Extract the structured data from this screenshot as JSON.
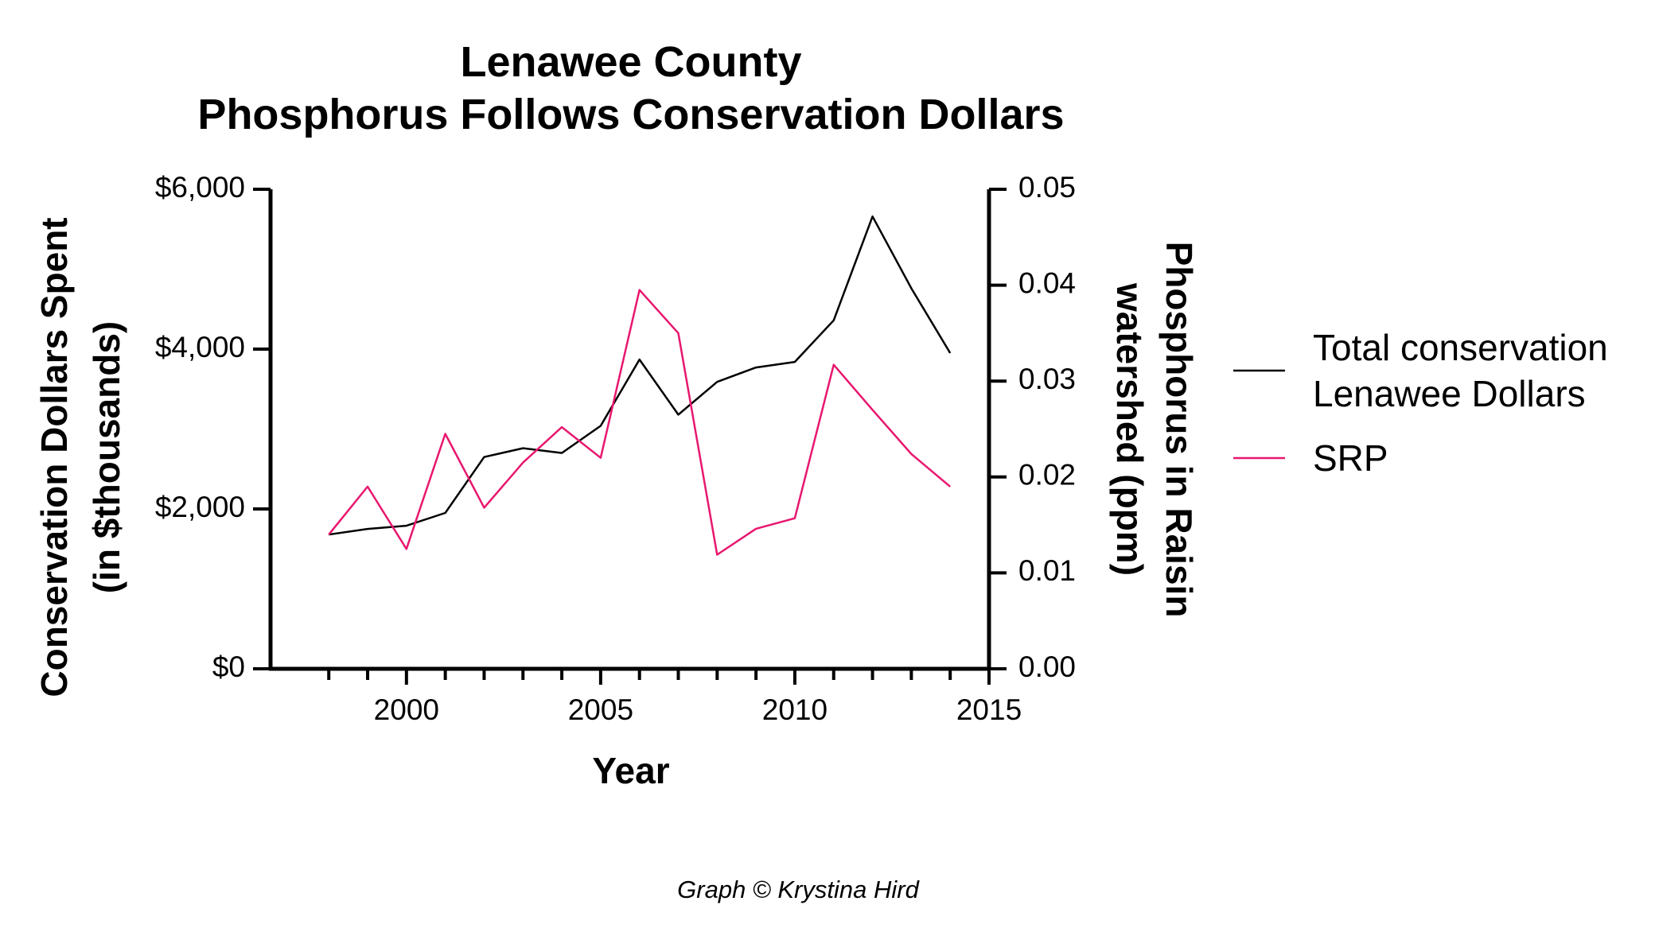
{
  "chart_data": {
    "type": "line",
    "title": [
      "Lenawee County",
      "Phosphorus Follows Conservation Dollars"
    ],
    "xlabel": "Year",
    "ylabel_left": [
      "Conservation Dollars Spent",
      "(in $thousands)"
    ],
    "ylabel_right": [
      "Phosphorus in Raisin",
      "watershed (ppm)"
    ],
    "xlim": [
      1996.5,
      2015
    ],
    "ylim_left": [
      0,
      6000
    ],
    "ylim_right": [
      0,
      0.05
    ],
    "x_ticks": [
      2000,
      2005,
      2010,
      2015
    ],
    "x_tick_labels": [
      "2000",
      "2005",
      "2010",
      "2015"
    ],
    "x_minor_ticks": [
      1998,
      1999,
      2001,
      2002,
      2003,
      2004,
      2006,
      2007,
      2008,
      2009,
      2011,
      2012,
      2013,
      2014
    ],
    "y_left_ticks": [
      0,
      2000,
      4000,
      6000
    ],
    "y_left_tick_labels": [
      "$0",
      "$2,000",
      "$4,000",
      "$6,000"
    ],
    "y_right_ticks": [
      0,
      0.01,
      0.02,
      0.03,
      0.04,
      0.05
    ],
    "y_right_tick_labels": [
      "0.00",
      "0.01",
      "0.02",
      "0.03",
      "0.04",
      "0.05"
    ],
    "x": [
      1998,
      1999,
      2000,
      2001,
      2002,
      2003,
      2004,
      2005,
      2006,
      2007,
      2008,
      2009,
      2010,
      2011,
      2012,
      2013,
      2014
    ],
    "series": [
      {
        "name": "Total conservation Lenawee Dollars",
        "legend_lines": [
          "Total conservation",
          "Lenawee Dollars"
        ],
        "axis": "left",
        "color": "#000000",
        "values": [
          1680,
          1750,
          1790,
          1950,
          2650,
          2760,
          2700,
          3040,
          3870,
          3180,
          3590,
          3770,
          3840,
          4360,
          5660,
          4760,
          3950
        ]
      },
      {
        "name": "SRP",
        "legend_lines": [
          "SRP"
        ],
        "axis": "right",
        "color": "#e8176f",
        "values": [
          0.014,
          0.019,
          0.0125,
          0.0245,
          0.0168,
          0.0215,
          0.0252,
          0.022,
          0.0395,
          0.035,
          0.0119,
          0.0146,
          0.0157,
          0.0317,
          0.027,
          0.0224,
          0.019
        ]
      }
    ],
    "legend_position": "right"
  },
  "credit": "Graph © Krystina Hird"
}
